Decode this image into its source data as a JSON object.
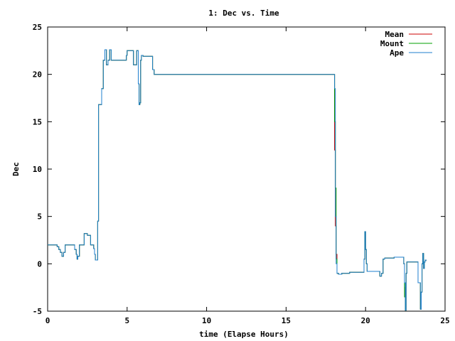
{
  "chart_data": {
    "type": "line",
    "title": "1: Dec vs. Time",
    "xlabel": "time (Elapse Hours)",
    "ylabel": "Dec",
    "xlim": [
      0,
      25
    ],
    "ylim": [
      -5,
      25
    ],
    "x_ticks": [
      "0",
      "5",
      "10",
      "15",
      "20",
      "25"
    ],
    "y_ticks": [
      "25",
      "20",
      "15",
      "10",
      "5",
      "0",
      "-5"
    ],
    "x_tick_values": [
      0,
      5,
      10,
      15,
      20,
      25
    ],
    "y_tick_values": [
      25,
      20,
      15,
      10,
      5,
      0,
      -5
    ],
    "grid": false,
    "legend_position": "top-right",
    "series": [
      {
        "name": "Mean",
        "color": "#cc0000",
        "x": [
          0.0,
          0.5,
          0.6,
          0.7,
          0.8,
          0.9,
          1.0,
          1.1,
          1.6,
          1.7,
          1.8,
          1.85,
          1.9,
          2.0,
          2.2,
          2.3,
          2.5,
          2.7,
          2.8,
          2.9,
          2.95,
          3.0,
          3.1,
          3.15,
          3.2,
          3.3,
          3.4,
          3.5,
          3.6,
          3.7,
          3.8,
          3.9,
          4.0,
          4.1,
          4.5,
          4.9,
          4.95,
          5.0,
          5.3,
          5.4,
          5.5,
          5.6,
          5.7,
          5.75,
          5.8,
          5.85,
          5.9,
          6.0,
          6.1,
          6.5,
          6.6,
          6.7,
          11.5,
          12.5,
          12.6,
          18.0,
          18.05,
          18.1,
          18.15,
          18.2,
          18.3,
          18.5,
          19.0,
          19.5,
          19.8,
          19.9,
          19.95,
          20.0,
          20.05,
          20.1,
          20.2,
          20.5,
          20.8,
          20.9,
          21.0,
          21.1,
          21.2,
          21.5,
          21.8,
          22.0,
          22.3,
          22.4,
          22.45,
          22.5,
          22.55,
          22.6,
          22.65,
          22.7,
          22.75,
          23.2,
          23.3,
          23.45,
          23.5,
          23.55,
          23.6,
          23.65,
          23.7,
          23.75,
          23.8
        ],
        "y": [
          2.0,
          2.0,
          1.8,
          1.5,
          1.2,
          0.8,
          1.2,
          2.0,
          2.0,
          1.5,
          1.0,
          0.5,
          0.8,
          2.0,
          2.0,
          3.2,
          3.0,
          2.0,
          2.0,
          1.6,
          1.0,
          0.4,
          0.4,
          4.5,
          16.8,
          16.8,
          18.5,
          21.5,
          22.6,
          21.0,
          21.5,
          22.6,
          21.5,
          21.5,
          21.5,
          21.5,
          22.0,
          22.5,
          22.5,
          21.0,
          21.0,
          22.5,
          19.0,
          16.8,
          17.0,
          21.5,
          22.0,
          21.9,
          21.9,
          21.9,
          20.5,
          20.0,
          20.0,
          20.0,
          20.0,
          20.0,
          12.0,
          4.0,
          1.0,
          -1.0,
          -1.1,
          -1.0,
          -0.9,
          -0.9,
          -0.9,
          0.5,
          3.4,
          1.5,
          0.0,
          -0.8,
          -0.8,
          -0.8,
          -0.8,
          -1.3,
          -1.0,
          0.5,
          0.6,
          0.6,
          0.7,
          0.7,
          0.7,
          0.0,
          -2.5,
          -4.9,
          -1.0,
          0.2,
          0.2,
          0.2,
          0.2,
          0.2,
          -2.0,
          -4.8,
          -3.0,
          0.0,
          1.1,
          -0.5,
          0.2,
          0.4,
          0.3
        ]
      },
      {
        "name": "Mount",
        "color": "#00a000",
        "x": [
          0.0,
          0.5,
          0.6,
          0.7,
          0.8,
          0.9,
          1.0,
          1.1,
          1.6,
          1.7,
          1.8,
          1.85,
          1.9,
          2.0,
          2.2,
          2.3,
          2.5,
          2.7,
          2.8,
          2.9,
          2.95,
          3.0,
          3.1,
          3.15,
          3.2,
          3.3,
          3.4,
          3.5,
          3.6,
          3.7,
          3.8,
          3.9,
          4.0,
          4.1,
          4.5,
          4.9,
          4.95,
          5.0,
          5.3,
          5.4,
          5.5,
          5.6,
          5.7,
          5.75,
          5.8,
          5.85,
          5.9,
          6.0,
          6.1,
          6.5,
          6.6,
          6.7,
          11.5,
          12.5,
          12.6,
          18.0,
          18.05,
          18.1,
          18.15,
          18.2,
          18.3,
          18.5,
          19.0,
          19.5,
          19.8,
          19.9,
          19.95,
          20.0,
          20.05,
          20.1,
          20.2,
          20.5,
          20.8,
          20.9,
          21.0,
          21.1,
          21.2,
          21.5,
          21.8,
          22.0,
          22.3,
          22.4,
          22.45,
          22.5,
          22.55,
          22.6,
          22.65,
          22.7,
          22.75,
          23.2,
          23.3,
          23.45,
          23.5,
          23.55,
          23.6,
          23.65,
          23.7,
          23.75,
          23.8
        ],
        "y": [
          2.0,
          2.0,
          1.8,
          1.5,
          1.2,
          0.8,
          1.2,
          2.0,
          2.0,
          1.5,
          1.0,
          0.5,
          0.8,
          2.0,
          2.0,
          3.2,
          3.0,
          2.0,
          2.0,
          1.6,
          1.0,
          0.4,
          0.4,
          4.5,
          16.8,
          16.8,
          18.5,
          21.5,
          22.6,
          21.0,
          21.5,
          22.6,
          21.5,
          21.5,
          21.5,
          21.5,
          22.0,
          22.5,
          22.5,
          21.0,
          21.0,
          22.5,
          19.0,
          16.8,
          17.0,
          21.5,
          22.0,
          21.9,
          21.9,
          21.9,
          20.5,
          20.0,
          20.0,
          20.0,
          20.0,
          20.0,
          15.0,
          8.0,
          0.5,
          -1.0,
          -1.1,
          -1.0,
          -0.9,
          -0.9,
          -0.9,
          0.5,
          3.4,
          1.5,
          0.0,
          -0.8,
          -0.8,
          -0.8,
          -0.8,
          -1.3,
          -1.0,
          0.5,
          0.6,
          0.6,
          0.7,
          0.7,
          0.7,
          0.0,
          -3.5,
          -4.9,
          -1.0,
          0.2,
          0.2,
          0.2,
          0.2,
          0.2,
          -2.0,
          -4.8,
          -3.0,
          0.0,
          1.1,
          -0.5,
          0.2,
          0.4,
          0.3
        ]
      },
      {
        "name": "Ape",
        "color": "#1f7fcf",
        "x": [
          0.0,
          0.5,
          0.6,
          0.7,
          0.8,
          0.9,
          1.0,
          1.1,
          1.6,
          1.7,
          1.8,
          1.85,
          1.9,
          2.0,
          2.2,
          2.3,
          2.5,
          2.7,
          2.8,
          2.9,
          2.95,
          3.0,
          3.1,
          3.15,
          3.2,
          3.3,
          3.4,
          3.5,
          3.6,
          3.7,
          3.8,
          3.9,
          4.0,
          4.1,
          4.5,
          4.9,
          4.95,
          5.0,
          5.3,
          5.4,
          5.5,
          5.6,
          5.7,
          5.75,
          5.8,
          5.85,
          5.9,
          6.0,
          6.1,
          6.5,
          6.6,
          6.7,
          11.5,
          12.5,
          12.6,
          18.0,
          18.05,
          18.1,
          18.15,
          18.2,
          18.3,
          18.5,
          19.0,
          19.5,
          19.8,
          19.9,
          19.95,
          20.0,
          20.05,
          20.1,
          20.2,
          20.5,
          20.8,
          20.9,
          21.0,
          21.1,
          21.2,
          21.5,
          21.8,
          22.0,
          22.3,
          22.4,
          22.45,
          22.5,
          22.55,
          22.6,
          22.65,
          22.7,
          22.75,
          23.2,
          23.3,
          23.45,
          23.5,
          23.55,
          23.6,
          23.65,
          23.7,
          23.75,
          23.8
        ],
        "y": [
          2.0,
          2.0,
          1.8,
          1.5,
          1.2,
          0.8,
          1.2,
          2.0,
          2.0,
          1.5,
          1.0,
          0.5,
          0.8,
          2.0,
          2.0,
          3.2,
          3.0,
          2.0,
          2.0,
          1.6,
          1.0,
          0.4,
          0.4,
          4.5,
          16.8,
          16.8,
          18.5,
          21.5,
          22.6,
          21.0,
          21.5,
          22.6,
          21.5,
          21.5,
          21.5,
          21.5,
          22.0,
          22.5,
          22.5,
          21.0,
          21.0,
          22.5,
          19.0,
          16.8,
          17.0,
          21.5,
          22.0,
          21.9,
          21.9,
          21.9,
          20.5,
          20.0,
          20.0,
          20.0,
          20.0,
          20.0,
          18.5,
          5.0,
          0.0,
          -1.0,
          -1.1,
          -1.0,
          -0.9,
          -0.9,
          -0.9,
          0.5,
          3.4,
          1.5,
          0.0,
          -0.8,
          -0.8,
          -0.8,
          -0.8,
          -1.3,
          -1.0,
          0.5,
          0.6,
          0.6,
          0.7,
          0.7,
          0.7,
          0.0,
          -2.0,
          -4.9,
          -1.0,
          0.2,
          0.2,
          0.2,
          0.2,
          0.2,
          -2.0,
          -4.8,
          -3.0,
          0.0,
          1.1,
          -0.5,
          0.2,
          0.4,
          0.3
        ]
      }
    ]
  }
}
